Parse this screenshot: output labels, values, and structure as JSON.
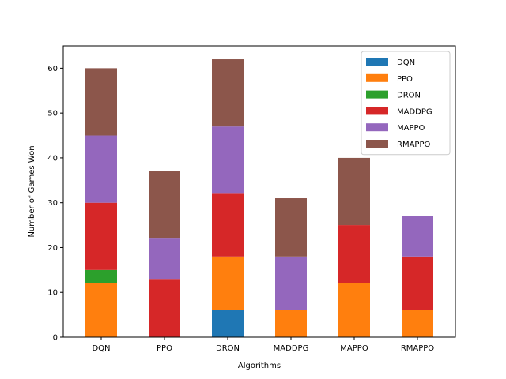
{
  "chart_data": {
    "type": "bar",
    "stacked": true,
    "title": "",
    "xlabel": "Algorithms",
    "ylabel": "Number of Games Won",
    "categories": [
      "DQN",
      "PPO",
      "DRON",
      "MADDPG",
      "MAPPO",
      "RMAPPO"
    ],
    "ylim": [
      0,
      65
    ],
    "yticks": [
      0,
      10,
      20,
      30,
      40,
      50,
      60
    ],
    "grid": false,
    "legend_position": "top-right",
    "series": [
      {
        "name": "DQN",
        "color": "#1f77b4",
        "values": [
          0,
          0,
          6,
          0,
          0,
          0
        ]
      },
      {
        "name": "PPO",
        "color": "#ff7f0e",
        "values": [
          12,
          0,
          12,
          6,
          12,
          6
        ]
      },
      {
        "name": "DRON",
        "color": "#2ca02c",
        "values": [
          3,
          0,
          0,
          0,
          0,
          0
        ]
      },
      {
        "name": "MADDPG",
        "color": "#d62728",
        "values": [
          15,
          13,
          14,
          0,
          13,
          12
        ]
      },
      {
        "name": "MAPPO",
        "color": "#9467bd",
        "values": [
          15,
          9,
          15,
          12,
          0,
          9
        ]
      },
      {
        "name": "RMAPPO",
        "color": "#8c564b",
        "values": [
          15,
          15,
          15,
          13,
          15,
          0
        ]
      }
    ]
  }
}
